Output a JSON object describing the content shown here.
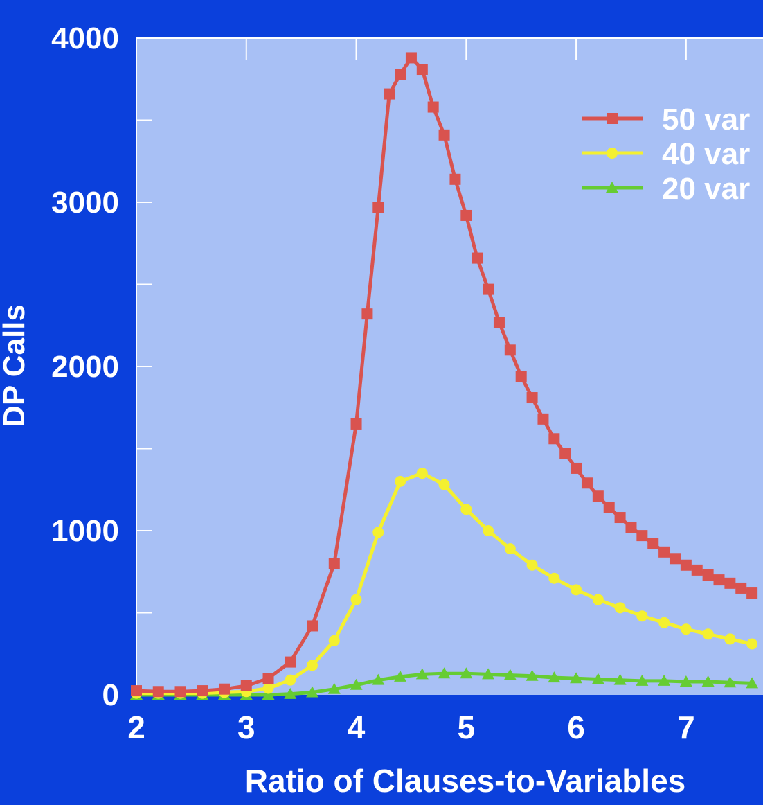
{
  "chart_data": {
    "type": "line",
    "title": "",
    "xlabel": "Ratio of Clauses-to-Variables",
    "ylabel": "DP Calls",
    "xlim": [
      2,
      7.7
    ],
    "ylim": [
      0,
      4000
    ],
    "x_ticks": [
      "2",
      "3",
      "4",
      "5",
      "6",
      "7"
    ],
    "y_ticks": [
      "0",
      "1000",
      "2000",
      "3000",
      "4000"
    ],
    "grid": false,
    "legend_position": "top-right",
    "series": [
      {
        "name": "50 var",
        "color": "#d9534f",
        "marker": "square",
        "x": [
          2.0,
          2.2,
          2.4,
          2.6,
          2.8,
          3.0,
          3.2,
          3.4,
          3.6,
          3.8,
          4.0,
          4.1,
          4.2,
          4.3,
          4.4,
          4.5,
          4.6,
          4.7,
          4.8,
          4.9,
          5.0,
          5.1,
          5.2,
          5.3,
          5.4,
          5.5,
          5.6,
          5.7,
          5.8,
          5.9,
          6.0,
          6.1,
          6.2,
          6.3,
          6.4,
          6.5,
          6.6,
          6.7,
          6.8,
          6.9,
          7.0,
          7.1,
          7.2,
          7.3,
          7.4,
          7.5,
          7.6
        ],
        "values": [
          25,
          20,
          20,
          25,
          35,
          55,
          100,
          200,
          420,
          800,
          1650,
          2320,
          2970,
          3660,
          3780,
          3880,
          3810,
          3580,
          3410,
          3140,
          2920,
          2660,
          2470,
          2270,
          2100,
          1940,
          1810,
          1680,
          1560,
          1470,
          1380,
          1290,
          1210,
          1140,
          1080,
          1020,
          970,
          920,
          870,
          830,
          790,
          760,
          730,
          700,
          680,
          650,
          620
        ]
      },
      {
        "name": "40 var",
        "color": "#f4f030",
        "marker": "circle",
        "x": [
          2.0,
          2.2,
          2.4,
          2.6,
          2.8,
          3.0,
          3.2,
          3.4,
          3.6,
          3.8,
          4.0,
          4.2,
          4.4,
          4.6,
          4.8,
          5.0,
          5.2,
          5.4,
          5.6,
          5.8,
          6.0,
          6.2,
          6.4,
          6.6,
          6.8,
          7.0,
          7.2,
          7.4,
          7.6
        ],
        "values": [
          10,
          10,
          10,
          10,
          15,
          20,
          40,
          90,
          180,
          330,
          580,
          990,
          1300,
          1350,
          1280,
          1130,
          1000,
          890,
          790,
          710,
          640,
          580,
          530,
          480,
          440,
          400,
          370,
          340,
          310
        ]
      },
      {
        "name": "20 var",
        "color": "#66cc33",
        "marker": "triangle",
        "x": [
          2.0,
          2.2,
          2.4,
          2.6,
          2.8,
          3.0,
          3.2,
          3.4,
          3.6,
          3.8,
          4.0,
          4.2,
          4.4,
          4.6,
          4.8,
          5.0,
          5.2,
          5.4,
          5.6,
          5.8,
          6.0,
          6.2,
          6.4,
          6.6,
          6.8,
          7.0,
          7.2,
          7.4,
          7.6
        ],
        "values": [
          0,
          0,
          0,
          0,
          0,
          0,
          0,
          5,
          15,
          35,
          60,
          90,
          110,
          125,
          130,
          130,
          125,
          120,
          115,
          105,
          100,
          95,
          90,
          85,
          85,
          80,
          80,
          75,
          70
        ]
      }
    ]
  }
}
